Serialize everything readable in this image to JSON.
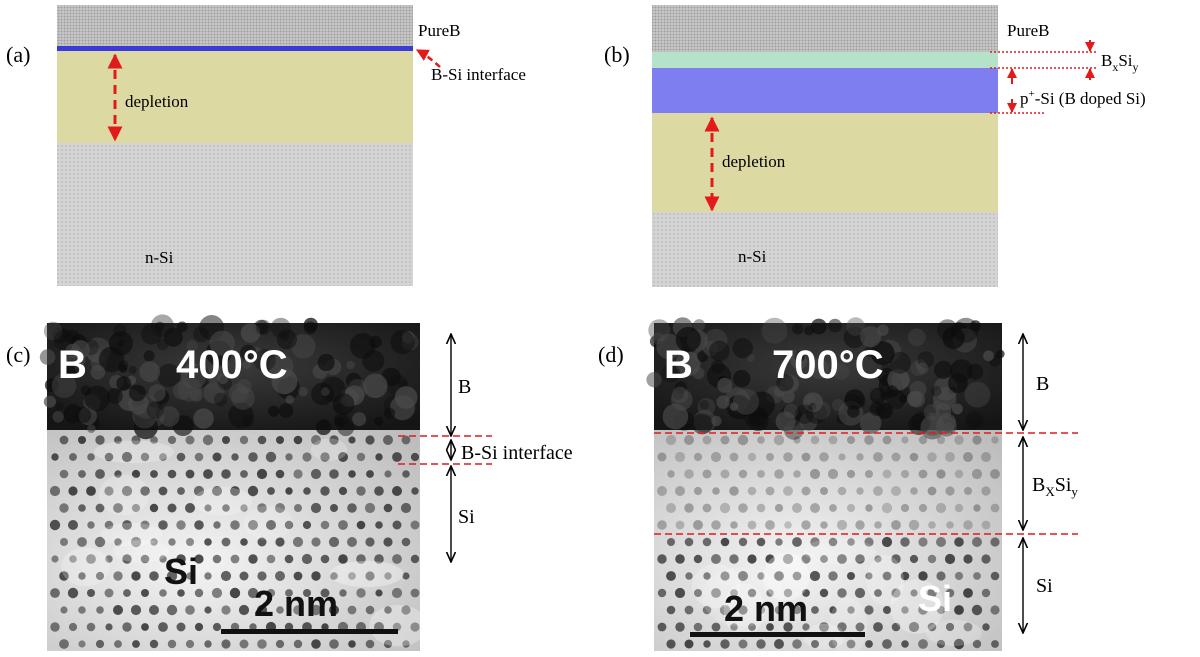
{
  "colors": {
    "pureb": "#c9c9c9",
    "depletion": "#ddd9a3",
    "nsi": "#d4d4d4",
    "bxsiy": "#b5e3c9",
    "psi": "#7e7ef0",
    "interface": "#3a3ad8",
    "arrow": "#e31a1a",
    "tem_dark": "#1b1b1b",
    "tem_light": "#e8e8e8"
  },
  "panel_a": {
    "tag": "(a)",
    "pureb": "PureB",
    "interface": "B-Si interface",
    "depletion": "depletion",
    "nsi": "n-Si"
  },
  "panel_b": {
    "tag": "(b)",
    "pureb": "PureB",
    "bxsiy_base": "B",
    "bxsiy_sub1": "x",
    "bxsiy_mid": "Si",
    "bxsiy_sub2": "y",
    "psi_base": "p",
    "psi_sup": "+",
    "psi_rest": "-Si (B doped Si)",
    "depletion": "depletion",
    "nsi": "n-Si"
  },
  "panel_c": {
    "tag": "(c)",
    "corner": "B",
    "temp": "400°C",
    "si_label": "Si",
    "scale": "2 nm",
    "side_b": "B",
    "side_interface": "B-Si interface",
    "side_si": "Si"
  },
  "panel_d": {
    "tag": "(d)",
    "corner": "B",
    "temp": "700°C",
    "si_label": "Si",
    "scale": "2 nm",
    "side_b": "B",
    "side_bxsiy_base": "B",
    "side_bxsiy_sub1": "X",
    "side_bxsiy_mid": "Si",
    "side_bxsiy_sub2": "y",
    "side_si": "Si"
  }
}
